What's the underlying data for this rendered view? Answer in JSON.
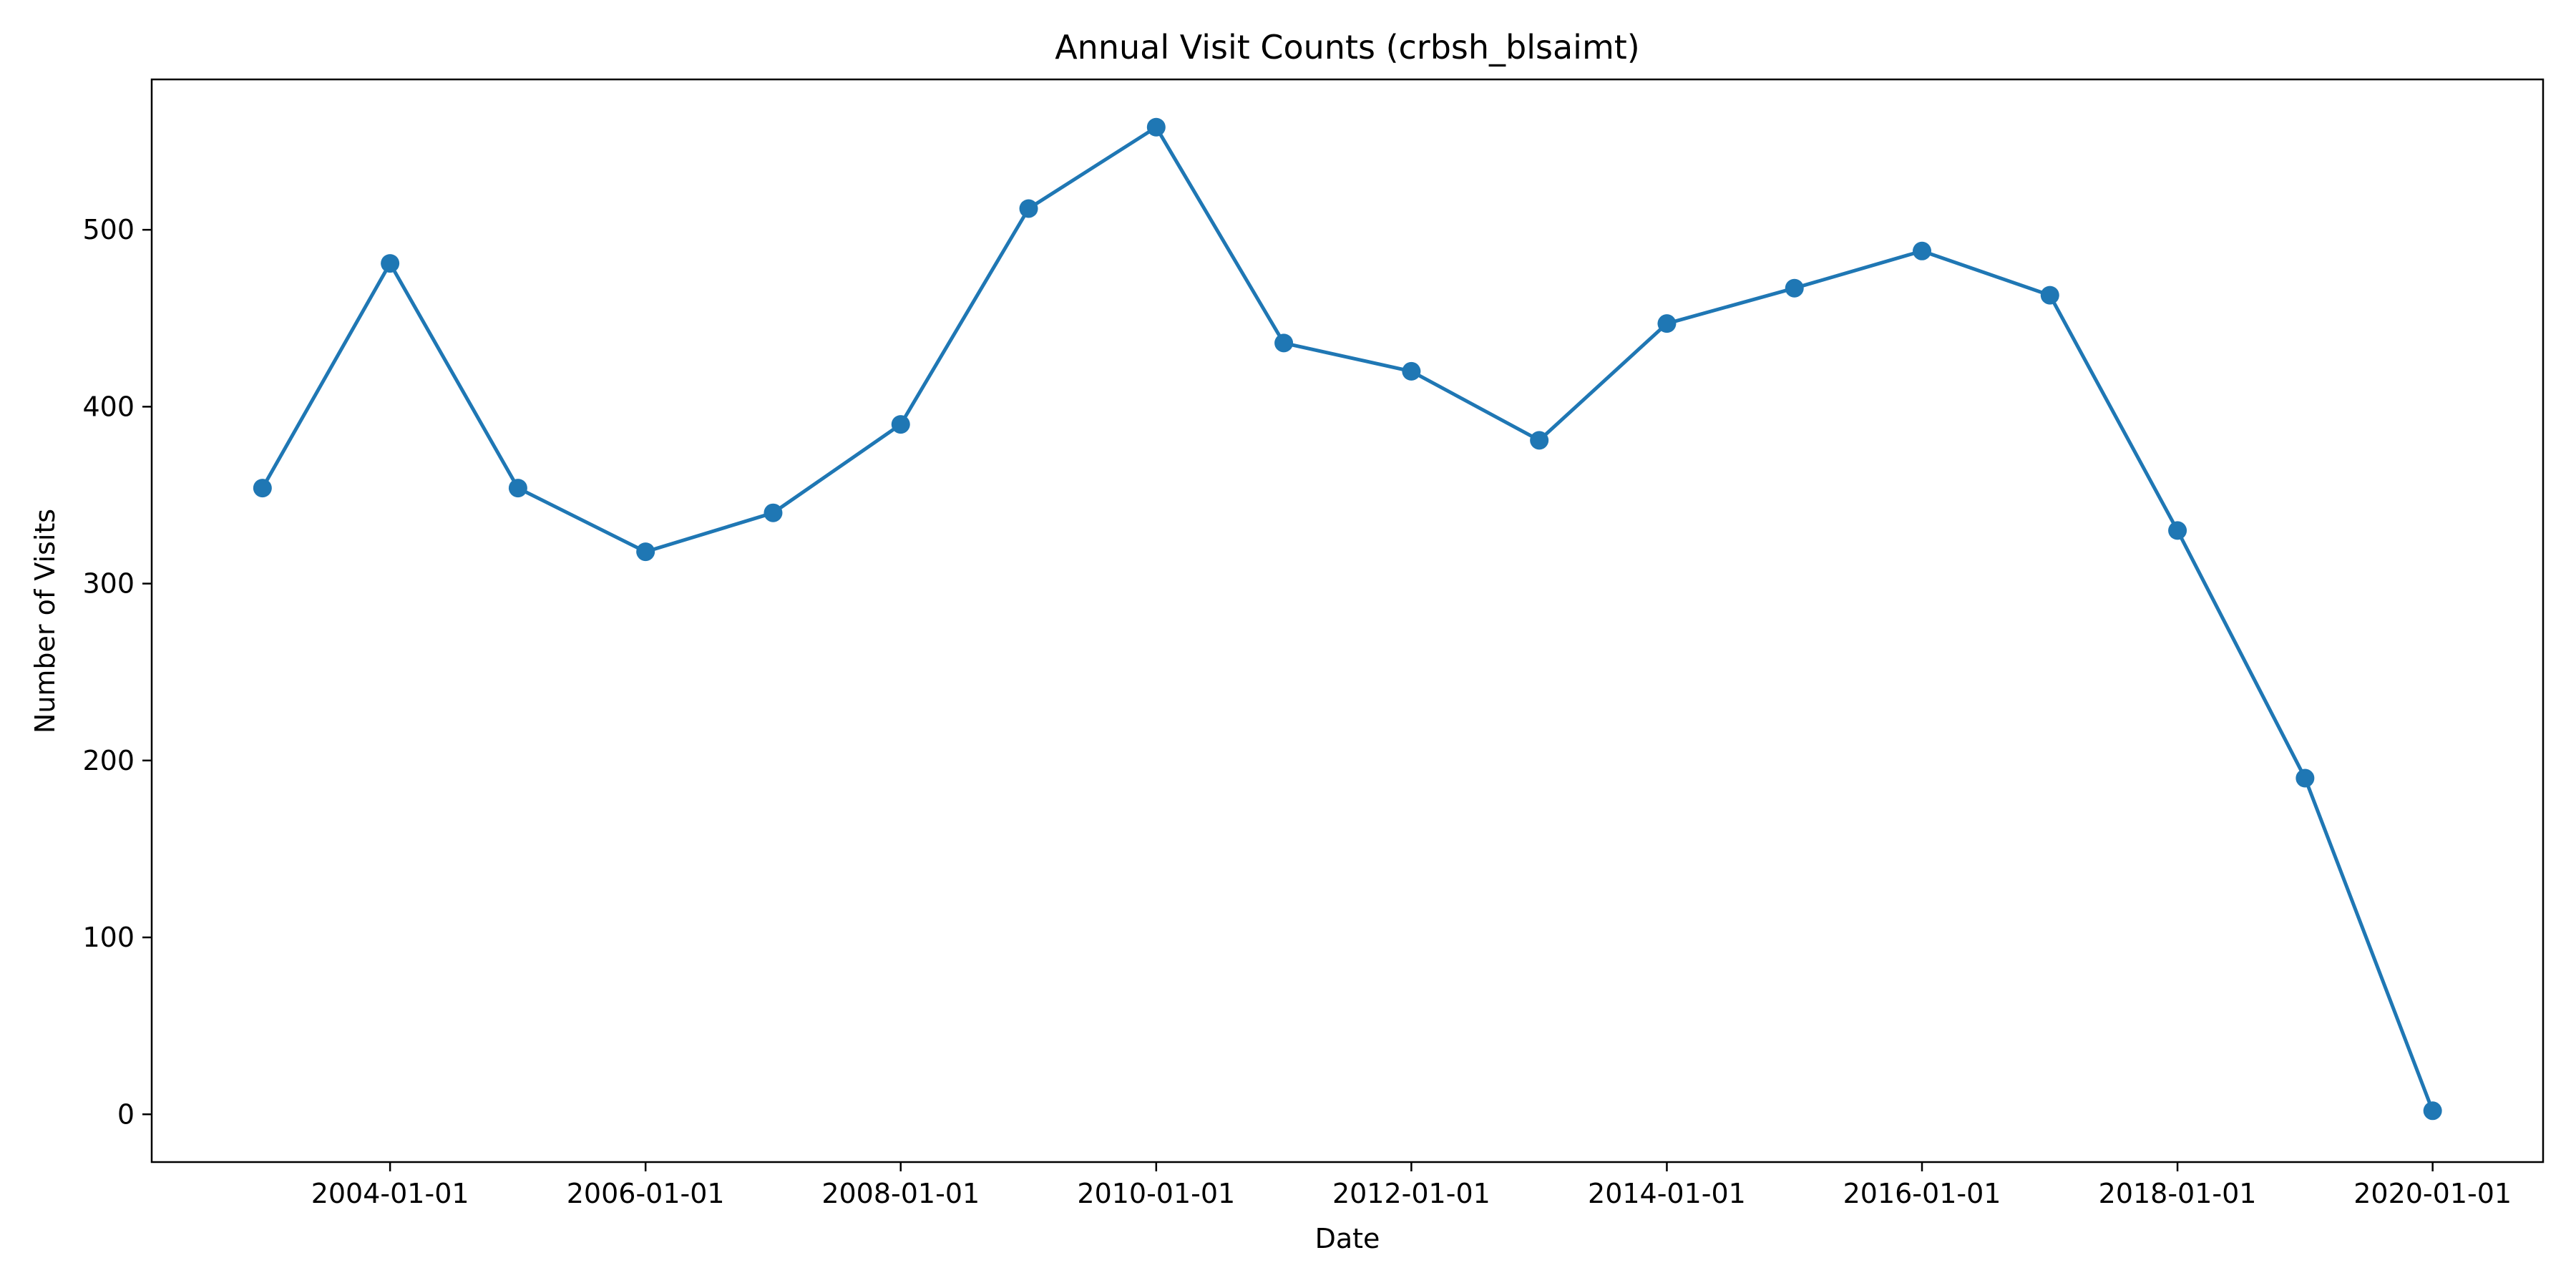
{
  "chart_data": {
    "type": "line",
    "title": "Annual Visit Counts (crbsh_blsaimt)",
    "xlabel": "Date",
    "ylabel": "Number of Visits",
    "x_tick_labels": [
      "2004-01-01",
      "2006-01-01",
      "2008-01-01",
      "2010-01-01",
      "2012-01-01",
      "2014-01-01",
      "2016-01-01",
      "2018-01-01",
      "2020-01-01"
    ],
    "y_ticks": [
      0,
      100,
      200,
      300,
      400,
      500
    ],
    "x_range": [
      "2002-02-18",
      "2020-11-12"
    ],
    "y_range": [
      -27,
      585
    ],
    "grid": false,
    "series": [
      {
        "color": "#1f77b4",
        "x": [
          "2003-01-01",
          "2004-01-01",
          "2005-01-01",
          "2006-01-01",
          "2007-01-01",
          "2008-01-01",
          "2009-01-01",
          "2010-01-01",
          "2011-01-01",
          "2012-01-01",
          "2013-01-01",
          "2014-01-01",
          "2015-01-01",
          "2016-01-01",
          "2017-01-01",
          "2018-01-01",
          "2019-01-01",
          "2020-01-01"
        ],
        "values": [
          354,
          481,
          354,
          318,
          340,
          390,
          512,
          558,
          436,
          420,
          381,
          447,
          467,
          488,
          463,
          330,
          190,
          2
        ]
      }
    ]
  }
}
